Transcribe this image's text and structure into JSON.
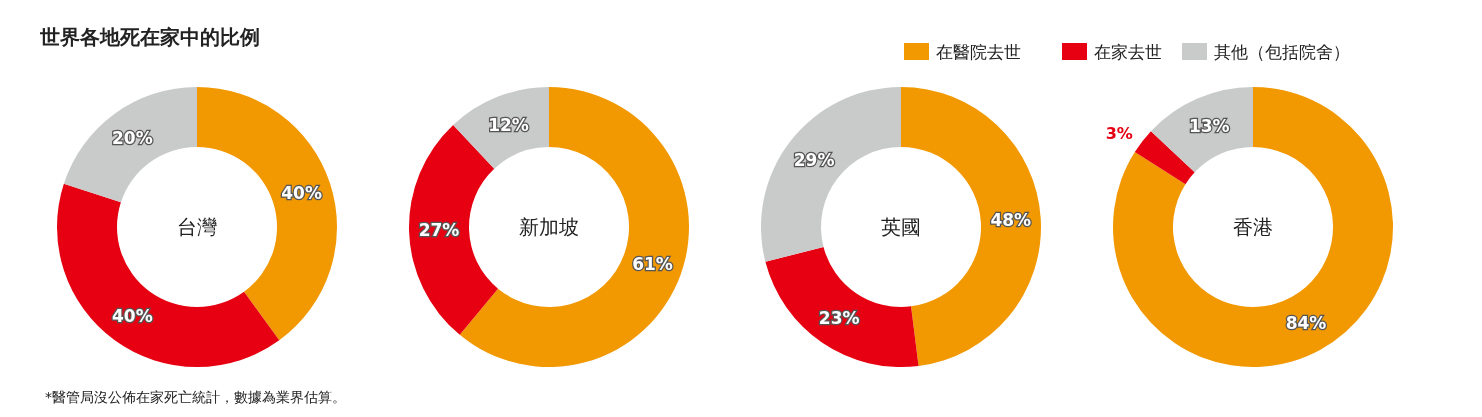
{
  "chart_data": [
    {
      "type": "donut",
      "title": "世界各地死在家中的比例",
      "categories": [
        null,
        null,
        null
      ],
      "values": [
        40,
        40,
        20
      ],
      "colors": [
        "#f29800",
        "#e60012",
        "#c9caca"
      ],
      "value_labels": [
        "40%",
        "40%",
        "20%"
      ],
      "annotations": [
        "台灣",
        "*醫管局沒公佈在家死亡統計，數據為業界估算。"
      ]
    },
    {
      "type": "donut",
      "categories": [
        null,
        null,
        null
      ],
      "values": [
        61,
        27,
        12
      ],
      "colors": [
        "#f29800",
        "#e60012",
        "#c9caca"
      ],
      "value_labels": [
        "61%",
        "27%",
        "12%"
      ],
      "annotations": [
        "新加坡"
      ]
    },
    {
      "type": "donut",
      "categories": [
        null,
        null,
        null
      ],
      "values": [
        48,
        23,
        29
      ],
      "colors": [
        "#f29800",
        "#e60012",
        "#c9caca"
      ],
      "value_labels": [
        "48%",
        "23%",
        "29%"
      ],
      "annotations": [
        "英國"
      ]
    },
    {
      "type": "donut",
      "categories": [
        "在醫院去世",
        "在家去世",
        "其他（包括院舍）"
      ],
      "values": [
        84,
        3,
        13
      ],
      "colors": [
        "#f29800",
        "#e60012",
        "#c9caca"
      ],
      "value_labels": [
        "84%",
        "3%",
        "13%"
      ],
      "legend": "top left",
      "annotations": [
        "香港"
      ]
    }
  ]
}
